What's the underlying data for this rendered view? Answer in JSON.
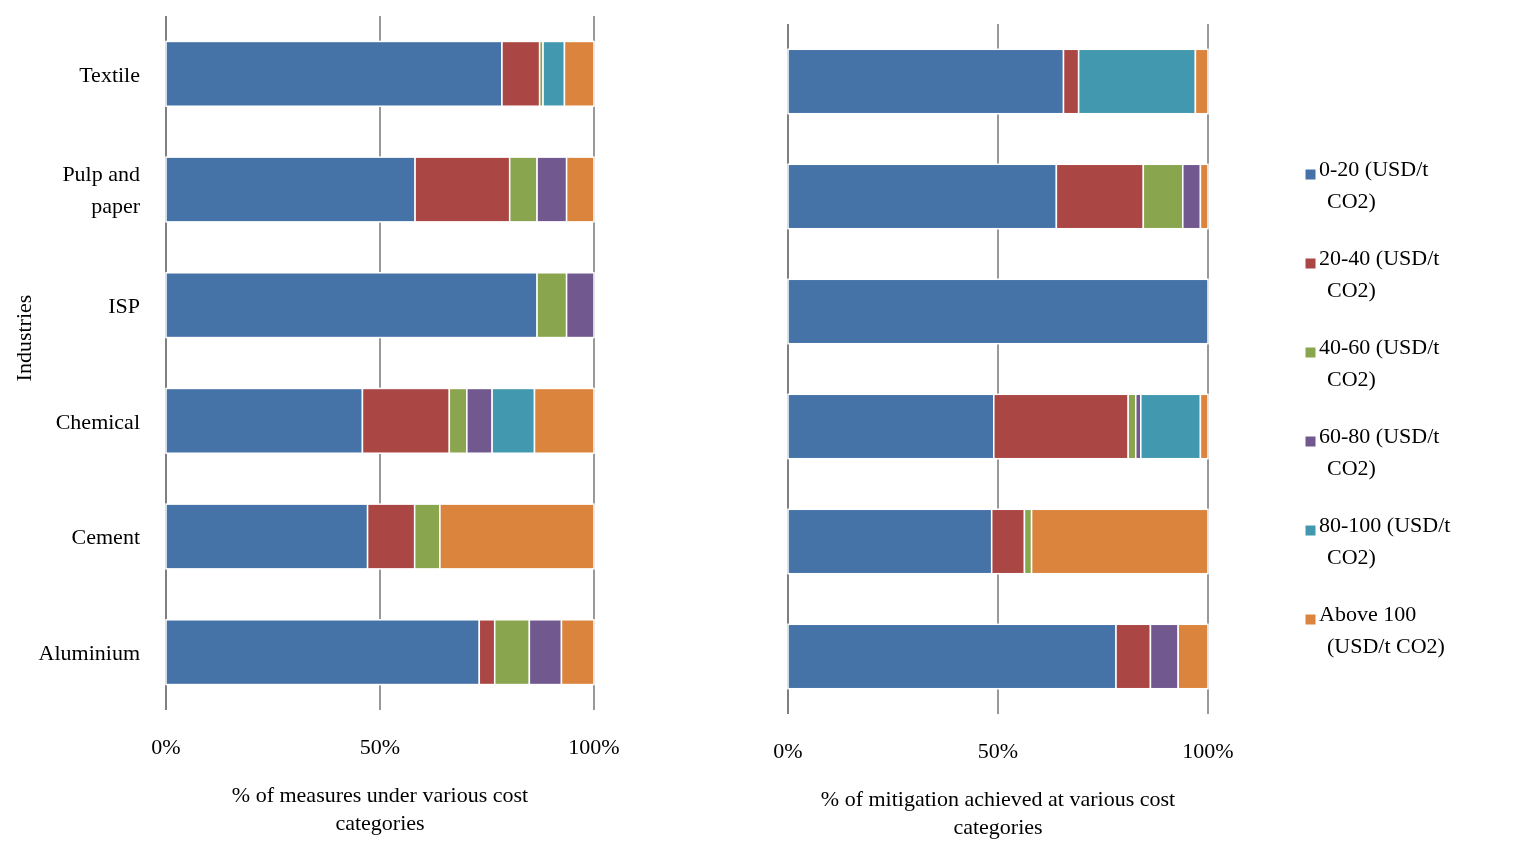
{
  "chart_data": [
    {
      "type": "bar",
      "orientation": "horizontal",
      "stacked": true,
      "ylabel": "Industries",
      "xlabel": "% of measures under various cost categories",
      "categories": [
        "Textile",
        "Pulp and paper",
        "ISP",
        "Chemical",
        "Cement",
        "Aluminium"
      ],
      "xlim": [
        0,
        100
      ],
      "xticks": [
        {
          "value": 0,
          "label": "0%"
        },
        {
          "value": 50,
          "label": "50%"
        },
        {
          "value": 100,
          "label": "100%"
        }
      ],
      "grid": "x",
      "legend": false,
      "series": [
        {
          "color": "#4572a7",
          "values": [
            78.5,
            58.2,
            86.7,
            45.9,
            47.1,
            73.2
          ]
        },
        {
          "color": "#aa4643",
          "values": [
            8.8,
            22.1,
            null,
            20.3,
            11.0,
            3.6
          ]
        },
        {
          "color": "#89a54e",
          "values": [
            0.8,
            6.4,
            6.9,
            4.1,
            5.9,
            8.1
          ]
        },
        {
          "color": "#71588f",
          "values": [
            null,
            6.9,
            6.4,
            5.9,
            null,
            7.5
          ]
        },
        {
          "color": "#4198af",
          "values": [
            5.0,
            null,
            null,
            9.9,
            null,
            null
          ]
        },
        {
          "color": "#db843d",
          "values": [
            6.9,
            6.4,
            null,
            13.9,
            36.0,
            7.6
          ]
        }
      ]
    },
    {
      "type": "bar",
      "orientation": "horizontal",
      "stacked": true,
      "xlabel": "% of mitigation achieved at various cost categories",
      "categories": [
        null,
        null,
        null,
        null,
        null,
        null
      ],
      "tick_labels": "x",
      "xlim": [
        0,
        100
      ],
      "xticks": [
        {
          "value": 0,
          "label": "0%"
        },
        {
          "value": 50,
          "label": "50%"
        },
        {
          "value": 100,
          "label": "100%"
        }
      ],
      "grid": "x",
      "legend": "right",
      "series": [
        {
          "name": "0-20 (USD/t CO2)",
          "color": "#4572a7",
          "values": [
            65.6,
            63.9,
            100,
            49.0,
            48.5,
            78.1
          ]
        },
        {
          "name": "20-40 (USD/t CO2)",
          "color": "#aa4643",
          "values": [
            3.6,
            20.7,
            null,
            32.0,
            7.8,
            8.2
          ]
        },
        {
          "name": "40-60 (USD/t CO2)",
          "color": "#89a54e",
          "values": [
            null,
            9.4,
            null,
            1.8,
            1.7,
            null
          ]
        },
        {
          "name": "60-80 (USD/t CO2)",
          "color": "#71588f",
          "values": [
            null,
            4.2,
            null,
            1.2,
            null,
            6.6
          ]
        },
        {
          "name": "80-100 (USD/t CO2)",
          "color": "#4198af",
          "values": [
            27.8,
            null,
            null,
            14.2,
            null,
            null
          ]
        },
        {
          "name": "Above 100 (USD/t CO2)",
          "color": "#db843d",
          "values": [
            3.0,
            1.8,
            null,
            1.8,
            42.0,
            7.1
          ]
        }
      ]
    }
  ]
}
